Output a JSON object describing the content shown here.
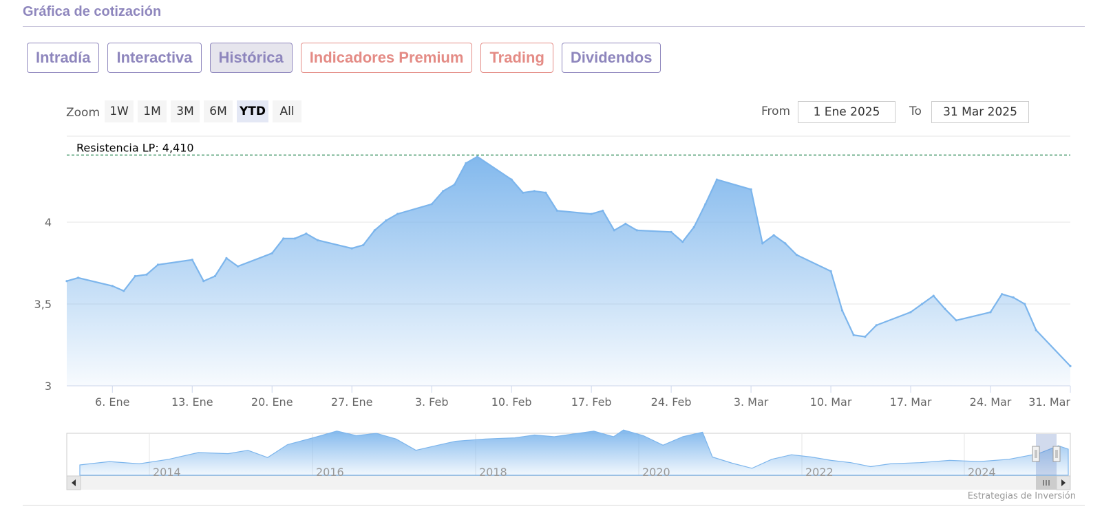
{
  "header": {
    "title": "Gráfica de cotización"
  },
  "tabs": [
    {
      "label": "Intradía",
      "state": "normal"
    },
    {
      "label": "Interactiva",
      "state": "normal"
    },
    {
      "label": "Histórica",
      "state": "active"
    },
    {
      "label": "Indicadores Premium",
      "state": "premium"
    },
    {
      "label": "Trading",
      "state": "premium"
    },
    {
      "label": "Dividendos",
      "state": "normal"
    }
  ],
  "range_selector": {
    "zoom_label": "Zoom",
    "buttons": [
      "1W",
      "1M",
      "3M",
      "6M",
      "YTD",
      "All"
    ],
    "selected": "YTD",
    "from_label": "From",
    "from_value": "1 Ene 2025",
    "to_label": "To",
    "to_value": "31 Mar 2025"
  },
  "credit": "Estrategias de Inversión",
  "colors": {
    "brand": "#8e86bd",
    "premium": "#e48b85",
    "series": "#7cb5ec",
    "resistance": "#2e8b57"
  },
  "chart_data": {
    "type": "area",
    "title": "",
    "ylim": [
      3,
      4.41
    ],
    "yticks": [
      3,
      3.5,
      4
    ],
    "ytick_labels": [
      "3",
      "3,5",
      "4"
    ],
    "xlim": [
      "2025-01-02",
      "2025-03-31"
    ],
    "xticks": [
      {
        "date": "2025-01-06",
        "label": "6. Ene"
      },
      {
        "date": "2025-01-13",
        "label": "13. Ene"
      },
      {
        "date": "2025-01-20",
        "label": "20. Ene"
      },
      {
        "date": "2025-01-27",
        "label": "27. Ene"
      },
      {
        "date": "2025-02-03",
        "label": "3. Feb"
      },
      {
        "date": "2025-02-10",
        "label": "10. Feb"
      },
      {
        "date": "2025-02-17",
        "label": "17. Feb"
      },
      {
        "date": "2025-02-24",
        "label": "24. Feb"
      },
      {
        "date": "2025-03-03",
        "label": "3. Mar"
      },
      {
        "date": "2025-03-10",
        "label": "10. Mar"
      },
      {
        "date": "2025-03-17",
        "label": "17. Mar"
      },
      {
        "date": "2025-03-24",
        "label": "24. Mar"
      },
      {
        "date": "2025-03-31",
        "label": "31. Mar"
      }
    ],
    "grid": true,
    "plot_lines": [
      {
        "label": "Resistencia LP: 4,410",
        "value": 4.41,
        "style": "dashed"
      }
    ],
    "series": [
      {
        "x": [
          "2025-01-02",
          "2025-01-03",
          "2025-01-06",
          "2025-01-07",
          "2025-01-08",
          "2025-01-09",
          "2025-01-10",
          "2025-01-13",
          "2025-01-14",
          "2025-01-15",
          "2025-01-16",
          "2025-01-17",
          "2025-01-20",
          "2025-01-21",
          "2025-01-22",
          "2025-01-23",
          "2025-01-24",
          "2025-01-27",
          "2025-01-28",
          "2025-01-29",
          "2025-01-30",
          "2025-01-31",
          "2025-02-03",
          "2025-02-04",
          "2025-02-05",
          "2025-02-06",
          "2025-02-07",
          "2025-02-10",
          "2025-02-11",
          "2025-02-12",
          "2025-02-13",
          "2025-02-14",
          "2025-02-17",
          "2025-02-18",
          "2025-02-19",
          "2025-02-20",
          "2025-02-21",
          "2025-02-24",
          "2025-02-25",
          "2025-02-26",
          "2025-02-27",
          "2025-02-28",
          "2025-03-03",
          "2025-03-04",
          "2025-03-05",
          "2025-03-06",
          "2025-03-07",
          "2025-03-10",
          "2025-03-11",
          "2025-03-12",
          "2025-03-13",
          "2025-03-14",
          "2025-03-17",
          "2025-03-18",
          "2025-03-19",
          "2025-03-20",
          "2025-03-21",
          "2025-03-24",
          "2025-03-25",
          "2025-03-26",
          "2025-03-27",
          "2025-03-28",
          "2025-03-31"
        ],
        "values": [
          3.64,
          3.66,
          3.61,
          3.58,
          3.67,
          3.68,
          3.74,
          3.77,
          3.64,
          3.67,
          3.78,
          3.73,
          3.81,
          3.9,
          3.9,
          3.93,
          3.89,
          3.84,
          3.86,
          3.95,
          4.01,
          4.05,
          4.11,
          4.19,
          4.23,
          4.36,
          4.4,
          4.26,
          4.18,
          4.19,
          4.18,
          4.07,
          4.05,
          4.07,
          3.95,
          3.99,
          3.95,
          3.94,
          3.88,
          3.97,
          4.11,
          4.26,
          4.2,
          3.87,
          3.92,
          3.87,
          3.8,
          3.7,
          3.46,
          3.31,
          3.3,
          3.37,
          3.45,
          3.5,
          3.55,
          3.47,
          3.4,
          3.45,
          3.56,
          3.54,
          3.5,
          3.34,
          3.12
        ]
      }
    ],
    "navigator": {
      "xtick_labels": [
        "2014",
        "2016",
        "2018",
        "2020",
        "2022",
        "2024"
      ]
    }
  }
}
